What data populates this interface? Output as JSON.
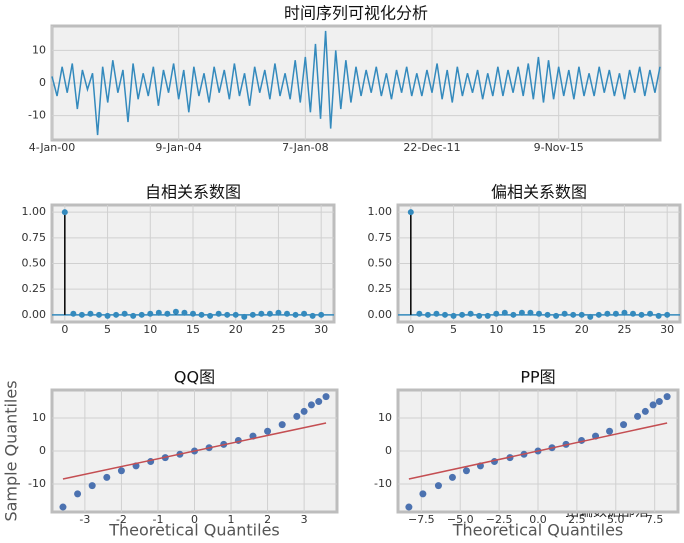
{
  "chart_data": [
    {
      "type": "line",
      "title": "时间序列可视化分析",
      "color": "#348abd",
      "grid": true,
      "values": [
        2,
        -4,
        5,
        -3,
        6,
        -8,
        4,
        -2,
        3,
        -16,
        5,
        -6,
        7,
        -3,
        4,
        -12,
        6,
        -5,
        3,
        -4,
        5,
        -7,
        4,
        -3,
        6,
        -5,
        4,
        -9,
        5,
        -4,
        3,
        -6,
        5,
        -3,
        4,
        -5,
        6,
        -4,
        3,
        -7,
        5,
        -3,
        4,
        -5,
        6,
        -4,
        3,
        -5,
        7,
        -6,
        8,
        -9,
        12,
        -11,
        16,
        -14,
        10,
        -8,
        7,
        -6,
        5,
        -4,
        4,
        -3,
        5,
        -4,
        3,
        -5,
        4,
        -3,
        5,
        -4,
        3,
        -4,
        4,
        -3,
        6,
        -5,
        4,
        -6,
        5,
        -4,
        3,
        -3,
        4,
        -5,
        3,
        -4,
        5,
        -4,
        4,
        -3,
        5,
        -4,
        6,
        -5,
        8,
        -6,
        7,
        -5,
        5,
        -4,
        4,
        -5,
        5,
        -4,
        3,
        -4,
        5,
        -3,
        4,
        -4,
        3,
        -5,
        4,
        -3,
        5,
        -4,
        4,
        -3,
        5
      ],
      "xlim": [
        0,
        120
      ],
      "xticks": [
        {
          "value": 0,
          "label": "4-Jan-00"
        },
        {
          "value": 25,
          "label": "9-Jan-04"
        },
        {
          "value": 50,
          "label": "7-Jan-08"
        },
        {
          "value": 75,
          "label": "22-Dec-11"
        },
        {
          "value": 100,
          "label": "9-Nov-15"
        }
      ],
      "ylim": [
        -17.5,
        17.5
      ],
      "yticks": [
        -10,
        0,
        10
      ]
    },
    {
      "type": "stem",
      "title": "自相关系数图",
      "color": "#348abd",
      "stem_color": "#000000",
      "grid": true,
      "x": [
        0,
        1,
        2,
        3,
        4,
        5,
        6,
        7,
        8,
        9,
        10,
        11,
        12,
        13,
        14,
        15,
        16,
        17,
        18,
        19,
        20,
        21,
        22,
        23,
        24,
        25,
        26,
        27,
        28,
        29,
        30
      ],
      "values": [
        1,
        0.01,
        0,
        0.01,
        0,
        -0.01,
        0,
        0.01,
        -0.01,
        0,
        0.01,
        0.02,
        0.01,
        0.03,
        0.02,
        0.01,
        0,
        -0.01,
        0.01,
        0,
        0,
        -0.02,
        0,
        0.01,
        0.01,
        0.02,
        0.01,
        0,
        0.01,
        -0.01,
        0
      ],
      "xlim": [
        -1.5,
        31.5
      ],
      "xticks": [
        0,
        5,
        10,
        15,
        20,
        25,
        30
      ],
      "ylim": [
        -0.07,
        1.07
      ],
      "yticks": [
        {
          "value": 0,
          "label": "0.00"
        },
        {
          "value": 0.25,
          "label": "0.25"
        },
        {
          "value": 0.5,
          "label": "0.50"
        },
        {
          "value": 0.75,
          "label": "0.75"
        },
        {
          "value": 1,
          "label": "1.00"
        }
      ]
    },
    {
      "type": "stem",
      "title": "偏相关系数图",
      "color": "#348abd",
      "stem_color": "#000000",
      "grid": true,
      "x": [
        0,
        1,
        2,
        3,
        4,
        5,
        6,
        7,
        8,
        9,
        10,
        11,
        12,
        13,
        14,
        15,
        16,
        17,
        18,
        19,
        20,
        21,
        22,
        23,
        24,
        25,
        26,
        27,
        28,
        29,
        30
      ],
      "values": [
        1,
        0.01,
        0,
        0.01,
        0,
        -0.01,
        0,
        0.01,
        -0.01,
        -0.01,
        0.01,
        0.02,
        0,
        0.02,
        0.02,
        0.01,
        0,
        -0.01,
        0.01,
        0,
        0,
        -0.02,
        0,
        0.01,
        0.01,
        0.02,
        0.01,
        0,
        0.01,
        -0.01,
        0
      ],
      "xlim": [
        -1.5,
        31.5
      ],
      "xticks": [
        0,
        5,
        10,
        15,
        20,
        25,
        30
      ],
      "ylim": [
        -0.07,
        1.07
      ],
      "yticks": [
        {
          "value": 0,
          "label": "0.00"
        },
        {
          "value": 0.25,
          "label": "0.25"
        },
        {
          "value": 0.5,
          "label": "0.50"
        },
        {
          "value": 0.75,
          "label": "0.75"
        },
        {
          "value": 1,
          "label": "1.00"
        }
      ]
    },
    {
      "type": "scatter",
      "title": "QQ图",
      "xlabel": "Theoretical Quantiles",
      "ylabel": "Sample Quantiles",
      "color": "#4c72b0",
      "grid": true,
      "x": [
        -3.6,
        -3.2,
        -2.8,
        -2.4,
        -2.0,
        -1.6,
        -1.2,
        -0.8,
        -0.4,
        0,
        0.4,
        0.8,
        1.2,
        1.6,
        2.0,
        2.4,
        2.8,
        3.0,
        3.2,
        3.4,
        3.6
      ],
      "values": [
        -17,
        -13,
        -10.5,
        -8,
        -6,
        -4.5,
        -3.2,
        -2,
        -1,
        0,
        1,
        2,
        3.2,
        4.5,
        6,
        8,
        10.5,
        12,
        14,
        15,
        16.5
      ],
      "fit_line": {
        "color": "#c44e52",
        "x": [
          -3.6,
          3.6
        ],
        "y": [
          -8.5,
          8.5
        ]
      },
      "xlim": [
        -3.9,
        3.9
      ],
      "xticks": [
        -3,
        -2,
        -1,
        0,
        1,
        2,
        3
      ],
      "ylim": [
        -18.5,
        18.5
      ],
      "yticks": [
        -10,
        0,
        10
      ]
    },
    {
      "type": "scatter",
      "title": "PP图",
      "xlabel": "Theoretical Quantiles",
      "color": "#4c72b0",
      "grid": true,
      "x": [
        -8.3,
        -7.4,
        -6.4,
        -5.5,
        -4.6,
        -3.7,
        -2.8,
        -1.8,
        -0.9,
        0,
        0.9,
        1.8,
        2.8,
        3.7,
        4.6,
        5.5,
        6.4,
        6.9,
        7.4,
        7.8,
        8.3
      ],
      "values": [
        -17,
        -13,
        -10.5,
        -8,
        -6,
        -4.5,
        -3.2,
        -2,
        -1,
        0,
        1,
        2,
        3.2,
        4.5,
        6,
        8,
        10.5,
        12,
        14,
        15,
        16.5
      ],
      "fit_line": {
        "color": "#c44e52",
        "x": [
          -8.3,
          8.3
        ],
        "y": [
          -8.5,
          8.5
        ]
      },
      "xlim": [
        -9,
        9
      ],
      "xticks": [
        {
          "value": -7.5,
          "label": "−7.5"
        },
        {
          "value": -5,
          "label": "−5.0"
        },
        {
          "value": -2.5,
          "label": "−2.5"
        },
        {
          "value": 0,
          "label": "0.0"
        },
        {
          "value": 2.5,
          "label": "2.5"
        },
        {
          "value": 5,
          "label": "5.0"
        },
        {
          "value": 7.5,
          "label": "7.5"
        }
      ],
      "ylim": [
        -18.5,
        18.5
      ],
      "yticks": [
        -10,
        0,
        10
      ]
    }
  ],
  "watermark": "拓端数据部落"
}
